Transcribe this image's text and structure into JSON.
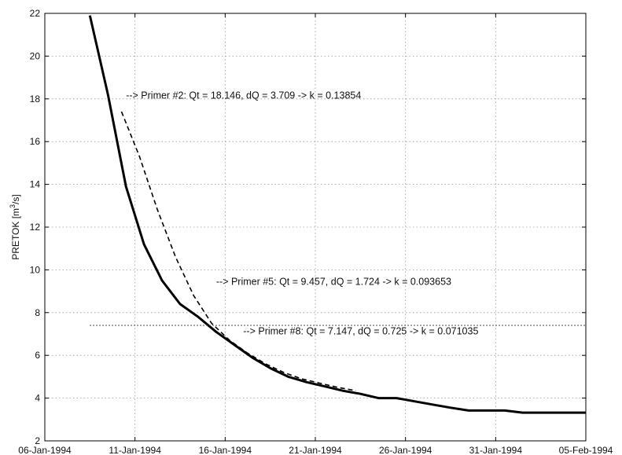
{
  "chart_data": {
    "type": "line",
    "title": "",
    "xlabel": "",
    "ylabel": "PRETOK [m^3/s]",
    "ylabel_parts": {
      "before": "PRETOK [m",
      "sup": "3",
      "after": "/s]"
    },
    "x_type": "date",
    "xlim": [
      "1994-01-06",
      "1994-02-05"
    ],
    "ylim": [
      2,
      22
    ],
    "grid": true,
    "xticks": [
      {
        "date": "1994-01-06",
        "label": "06-Jan-1994"
      },
      {
        "date": "1994-01-11",
        "label": "11-Jan-1994"
      },
      {
        "date": "1994-01-16",
        "label": "16-Jan-1994"
      },
      {
        "date": "1994-01-21",
        "label": "21-Jan-1994"
      },
      {
        "date": "1994-01-26",
        "label": "26-Jan-1994"
      },
      {
        "date": "1994-01-31",
        "label": "31-Jan-1994"
      },
      {
        "date": "1994-02-05",
        "label": "05-Feb-1994"
      }
    ],
    "yticks": [
      2,
      4,
      6,
      8,
      10,
      12,
      14,
      16,
      18,
      20,
      22
    ],
    "series": [
      {
        "style": "solid",
        "points": [
          [
            "1994-01-08 12:00",
            21.9
          ],
          [
            "1994-01-09 12:00",
            18.2
          ],
          [
            "1994-01-10 12:00",
            13.9
          ],
          [
            "1994-01-11 12:00",
            11.2
          ],
          [
            "1994-01-12 12:00",
            9.5
          ],
          [
            "1994-01-13 12:00",
            8.4
          ],
          [
            "1994-01-14 12:00",
            7.8
          ],
          [
            "1994-01-15 12:00",
            7.1
          ],
          [
            "1994-01-16 12:00",
            6.5
          ],
          [
            "1994-01-17 12:00",
            5.9
          ],
          [
            "1994-01-18 12:00",
            5.4
          ],
          [
            "1994-01-19 12:00",
            5.0
          ],
          [
            "1994-01-20 12:00",
            4.75
          ],
          [
            "1994-01-21 12:00",
            4.55
          ],
          [
            "1994-01-22 12:00",
            4.35
          ],
          [
            "1994-01-23 12:00",
            4.2
          ],
          [
            "1994-01-24 12:00",
            4.0
          ],
          [
            "1994-01-25 12:00",
            4.0
          ],
          [
            "1994-01-26 12:00",
            3.85
          ],
          [
            "1994-01-27 12:00",
            3.7
          ],
          [
            "1994-01-28 12:00",
            3.55
          ],
          [
            "1994-01-29 12:00",
            3.42
          ],
          [
            "1994-01-30 12:00",
            3.42
          ],
          [
            "1994-01-31 12:00",
            3.42
          ],
          [
            "1994-02-01 12:00",
            3.32
          ],
          [
            "1994-02-02 12:00",
            3.32
          ],
          [
            "1994-02-03 12:00",
            3.32
          ],
          [
            "1994-02-04 12:00",
            3.32
          ],
          [
            "1994-02-05 00:00",
            3.32
          ]
        ]
      },
      {
        "style": "dashed",
        "points": [
          [
            "1994-01-10 06:00",
            17.4
          ],
          [
            "1994-01-11 06:00",
            15.3
          ],
          [
            "1994-01-12 06:00",
            12.8
          ],
          [
            "1994-01-13 06:00",
            10.6
          ],
          [
            "1994-01-14 06:00",
            8.8
          ],
          [
            "1994-01-15 06:00",
            7.5
          ],
          [
            "1994-01-16 06:00",
            6.7
          ],
          [
            "1994-01-17 06:00",
            6.1
          ],
          [
            "1994-01-18 06:00",
            5.6
          ],
          [
            "1994-01-19 06:00",
            5.2
          ],
          [
            "1994-01-20 06:00",
            4.9
          ],
          [
            "1994-01-21 06:00",
            4.7
          ],
          [
            "1994-01-22 06:00",
            4.5
          ],
          [
            "1994-01-23 06:00",
            4.35
          ]
        ]
      },
      {
        "style": "dotted",
        "points": [
          [
            "1994-01-08 12:00",
            7.4
          ],
          [
            "1994-02-05 00:00",
            7.4
          ]
        ]
      }
    ],
    "annotations": [
      {
        "text": "--> Primer #2: Qt = 18.146, dQ = 3.709  ->  k = 0.13854",
        "date": "1994-01-10 12:00",
        "y": 18.15
      },
      {
        "text": "--> Primer #5: Qt = 9.457, dQ = 1.724  ->  k = 0.093653",
        "date": "1994-01-15 12:00",
        "y": 9.45
      },
      {
        "text": "--> Primer #8: Qt = 7.147, dQ = 0.725  ->  k = 0.071035",
        "date": "1994-01-17 00:00",
        "y": 7.12
      }
    ]
  }
}
